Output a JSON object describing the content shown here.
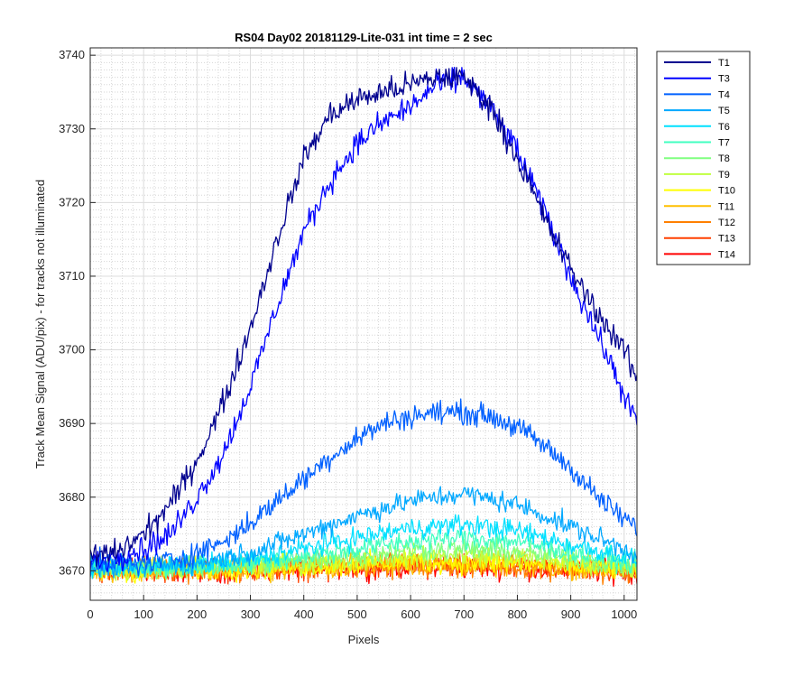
{
  "chart_data": {
    "type": "line",
    "title": "RS04 Day02 20181129-Lite-031 int time = 2 sec",
    "xlabel": "Pixels",
    "ylabel": "Track Mean Signal (ADU/pix) - for tracks not illuminated",
    "xlim": [
      0,
      1024
    ],
    "ylim": [
      3666,
      3741
    ],
    "xticks": [
      0,
      100,
      200,
      300,
      400,
      500,
      600,
      700,
      800,
      900,
      1000
    ],
    "yticks": [
      3670,
      3680,
      3690,
      3700,
      3710,
      3720,
      3730,
      3740
    ],
    "grid": true,
    "minor_grid": true,
    "legend_position": "outside-top-right",
    "series": [
      {
        "name": "T1",
        "color": "#00008f",
        "noise": 1.2,
        "points": [
          [
            0,
            3672
          ],
          [
            50,
            3672.5
          ],
          [
            100,
            3675
          ],
          [
            150,
            3679
          ],
          [
            200,
            3685
          ],
          [
            250,
            3693
          ],
          [
            300,
            3703
          ],
          [
            350,
            3715
          ],
          [
            400,
            3726
          ],
          [
            450,
            3732
          ],
          [
            500,
            3734
          ],
          [
            550,
            3735
          ],
          [
            600,
            3736
          ],
          [
            650,
            3737
          ],
          [
            700,
            3737
          ],
          [
            750,
            3733
          ],
          [
            800,
            3726
          ],
          [
            850,
            3718
          ],
          [
            900,
            3711
          ],
          [
            950,
            3705
          ],
          [
            1000,
            3700
          ],
          [
            1024,
            3696
          ]
        ]
      },
      {
        "name": "T3",
        "color": "#0000ff",
        "noise": 1.2,
        "points": [
          [
            0,
            3671
          ],
          [
            50,
            3672
          ],
          [
            100,
            3673
          ],
          [
            150,
            3675
          ],
          [
            200,
            3680
          ],
          [
            250,
            3686
          ],
          [
            300,
            3695
          ],
          [
            350,
            3706
          ],
          [
            400,
            3716
          ],
          [
            450,
            3723
          ],
          [
            500,
            3728
          ],
          [
            550,
            3731
          ],
          [
            600,
            3733
          ],
          [
            650,
            3736
          ],
          [
            700,
            3737
          ],
          [
            750,
            3733
          ],
          [
            800,
            3727
          ],
          [
            850,
            3719
          ],
          [
            900,
            3710
          ],
          [
            950,
            3702
          ],
          [
            1000,
            3694
          ],
          [
            1024,
            3690
          ]
        ]
      },
      {
        "name": "T4",
        "color": "#0060ff",
        "noise": 1.1,
        "points": [
          [
            0,
            3671
          ],
          [
            100,
            3671
          ],
          [
            150,
            3671.5
          ],
          [
            200,
            3672.5
          ],
          [
            250,
            3674
          ],
          [
            300,
            3676.5
          ],
          [
            350,
            3679.5
          ],
          [
            400,
            3682.5
          ],
          [
            450,
            3685.5
          ],
          [
            500,
            3688
          ],
          [
            550,
            3690
          ],
          [
            600,
            3691
          ],
          [
            650,
            3691.5
          ],
          [
            700,
            3691.5
          ],
          [
            750,
            3691
          ],
          [
            800,
            3689.5
          ],
          [
            850,
            3687
          ],
          [
            900,
            3684
          ],
          [
            950,
            3680
          ],
          [
            1000,
            3677
          ],
          [
            1024,
            3676
          ]
        ]
      },
      {
        "name": "T5",
        "color": "#00a8ff",
        "noise": 1.0,
        "points": [
          [
            0,
            3670.5
          ],
          [
            100,
            3670.5
          ],
          [
            200,
            3671
          ],
          [
            300,
            3672.5
          ],
          [
            400,
            3675
          ],
          [
            500,
            3677.5
          ],
          [
            600,
            3679.5
          ],
          [
            700,
            3680.5
          ],
          [
            800,
            3679
          ],
          [
            900,
            3676
          ],
          [
            1000,
            3673
          ],
          [
            1024,
            3672
          ]
        ]
      },
      {
        "name": "T6",
        "color": "#00e0ff",
        "noise": 1.0,
        "points": [
          [
            0,
            3670.5
          ],
          [
            100,
            3670.5
          ],
          [
            200,
            3670.8
          ],
          [
            300,
            3671.5
          ],
          [
            400,
            3673
          ],
          [
            500,
            3674.5
          ],
          [
            600,
            3675.8
          ],
          [
            700,
            3676.3
          ],
          [
            800,
            3675.5
          ],
          [
            900,
            3673.5
          ],
          [
            1000,
            3672
          ],
          [
            1024,
            3671.5
          ]
        ]
      },
      {
        "name": "T7",
        "color": "#40ffc0",
        "noise": 1.0,
        "points": [
          [
            0,
            3670.3
          ],
          [
            200,
            3670.5
          ],
          [
            300,
            3671
          ],
          [
            400,
            3672
          ],
          [
            500,
            3673
          ],
          [
            600,
            3674
          ],
          [
            700,
            3674.5
          ],
          [
            800,
            3674
          ],
          [
            900,
            3672.5
          ],
          [
            1024,
            3671
          ]
        ]
      },
      {
        "name": "T8",
        "color": "#80ff80",
        "noise": 1.0,
        "points": [
          [
            0,
            3670.2
          ],
          [
            200,
            3670.4
          ],
          [
            400,
            3671.3
          ],
          [
            600,
            3672.8
          ],
          [
            700,
            3673
          ],
          [
            800,
            3672.6
          ],
          [
            900,
            3671.6
          ],
          [
            1024,
            3670.6
          ]
        ]
      },
      {
        "name": "T9",
        "color": "#c0ff40",
        "noise": 1.0,
        "points": [
          [
            0,
            3670.2
          ],
          [
            200,
            3670.3
          ],
          [
            400,
            3671
          ],
          [
            600,
            3672
          ],
          [
            700,
            3672.2
          ],
          [
            800,
            3671.8
          ],
          [
            1024,
            3670.5
          ]
        ]
      },
      {
        "name": "T10",
        "color": "#ffff00",
        "noise": 1.1,
        "points": [
          [
            0,
            3670
          ],
          [
            300,
            3670.3
          ],
          [
            600,
            3671.3
          ],
          [
            800,
            3671
          ],
          [
            1024,
            3670.2
          ]
        ]
      },
      {
        "name": "T11",
        "color": "#ffbf00",
        "noise": 1.1,
        "points": [
          [
            0,
            3670
          ],
          [
            300,
            3670.2
          ],
          [
            600,
            3671
          ],
          [
            800,
            3670.8
          ],
          [
            1024,
            3670
          ]
        ]
      },
      {
        "name": "T12",
        "color": "#ff8000",
        "noise": 1.1,
        "points": [
          [
            0,
            3670
          ],
          [
            300,
            3670.2
          ],
          [
            600,
            3670.8
          ],
          [
            800,
            3670.6
          ],
          [
            1024,
            3669.9
          ]
        ]
      },
      {
        "name": "T13",
        "color": "#ff4000",
        "noise": 1.1,
        "points": [
          [
            0,
            3670
          ],
          [
            300,
            3670.1
          ],
          [
            600,
            3670.7
          ],
          [
            800,
            3670.5
          ],
          [
            1024,
            3669.9
          ]
        ]
      },
      {
        "name": "T14",
        "color": "#ff0000",
        "noise": 1.1,
        "points": [
          [
            0,
            3670
          ],
          [
            300,
            3670.1
          ],
          [
            600,
            3670.6
          ],
          [
            800,
            3670.4
          ],
          [
            1024,
            3669.8
          ]
        ]
      }
    ]
  }
}
